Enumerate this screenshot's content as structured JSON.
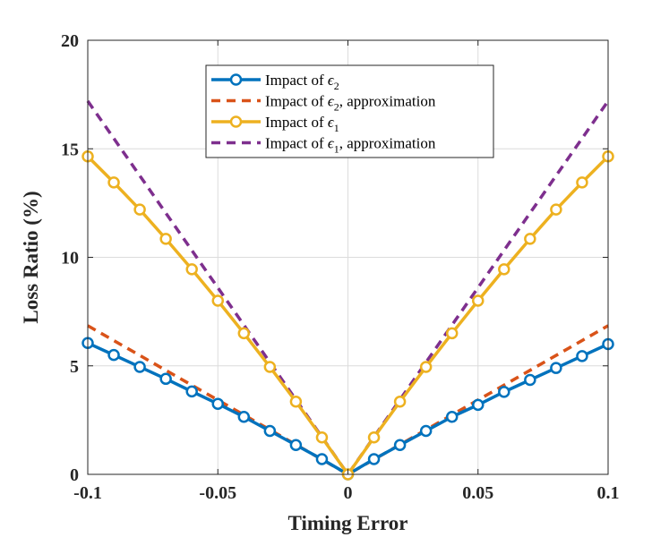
{
  "chart_data": {
    "type": "line",
    "title": "",
    "xlabel": "Timing Error",
    "ylabel": "Loss Ratio (%)",
    "xlim": [
      -0.1,
      0.1
    ],
    "ylim": [
      0,
      20
    ],
    "grid": true,
    "legend_position": "top-center",
    "x_ticks": [
      -0.1,
      -0.05,
      0,
      0.05,
      0.1
    ],
    "x_tick_labels": [
      "-0.1",
      "-0.05",
      "0",
      "0.05",
      "0.1"
    ],
    "y_ticks": [
      0,
      5,
      10,
      15,
      20
    ],
    "y_tick_labels": [
      "0",
      "5",
      "10",
      "15",
      "20"
    ],
    "series": [
      {
        "name": "Impact of ε2",
        "legend_main": "Impact of ",
        "legend_sym": "ϵ",
        "legend_sub": "2",
        "legend_rest": "",
        "color": "#0072BD",
        "style": "solid-marker",
        "x": [
          -0.1,
          -0.09,
          -0.08,
          -0.07,
          -0.06,
          -0.05,
          -0.04,
          -0.03,
          -0.02,
          -0.01,
          0,
          0.01,
          0.02,
          0.03,
          0.04,
          0.05,
          0.06,
          0.07,
          0.08,
          0.09,
          0.1
        ],
        "y": [
          6.05,
          5.5,
          4.95,
          4.4,
          3.82,
          3.25,
          2.65,
          2.0,
          1.35,
          0.7,
          0,
          0.7,
          1.35,
          2.0,
          2.65,
          3.2,
          3.8,
          4.35,
          4.9,
          5.45,
          6.0
        ]
      },
      {
        "name": "Impact of ε2, approximation",
        "legend_main": "Impact of ",
        "legend_sym": "ϵ",
        "legend_sub": "2",
        "legend_rest": ", approximation",
        "color": "#D95319",
        "style": "dashed",
        "x": [
          -0.1,
          0,
          0.1
        ],
        "y": [
          6.85,
          0,
          6.85
        ]
      },
      {
        "name": "Impact of ε1",
        "legend_main": "Impact of ",
        "legend_sym": "ϵ",
        "legend_sub": "1",
        "legend_rest": "",
        "color": "#EDB120",
        "style": "solid-marker",
        "x": [
          -0.1,
          -0.09,
          -0.08,
          -0.07,
          -0.06,
          -0.05,
          -0.04,
          -0.03,
          -0.02,
          -0.01,
          0,
          0.01,
          0.02,
          0.03,
          0.04,
          0.05,
          0.06,
          0.07,
          0.08,
          0.09,
          0.1
        ],
        "y": [
          14.65,
          13.45,
          12.2,
          10.85,
          9.45,
          8.0,
          6.5,
          4.95,
          3.35,
          1.7,
          0,
          1.7,
          3.35,
          4.95,
          6.5,
          8.0,
          9.45,
          10.85,
          12.2,
          13.45,
          14.65
        ]
      },
      {
        "name": "Impact of ε1, approximation",
        "legend_main": "Impact of ",
        "legend_sym": "ϵ",
        "legend_sub": "1",
        "legend_rest": ", approximation",
        "color": "#7E2F8E",
        "style": "dashed",
        "x": [
          -0.1,
          0,
          0.1
        ],
        "y": [
          17.2,
          0,
          17.2
        ]
      }
    ]
  }
}
